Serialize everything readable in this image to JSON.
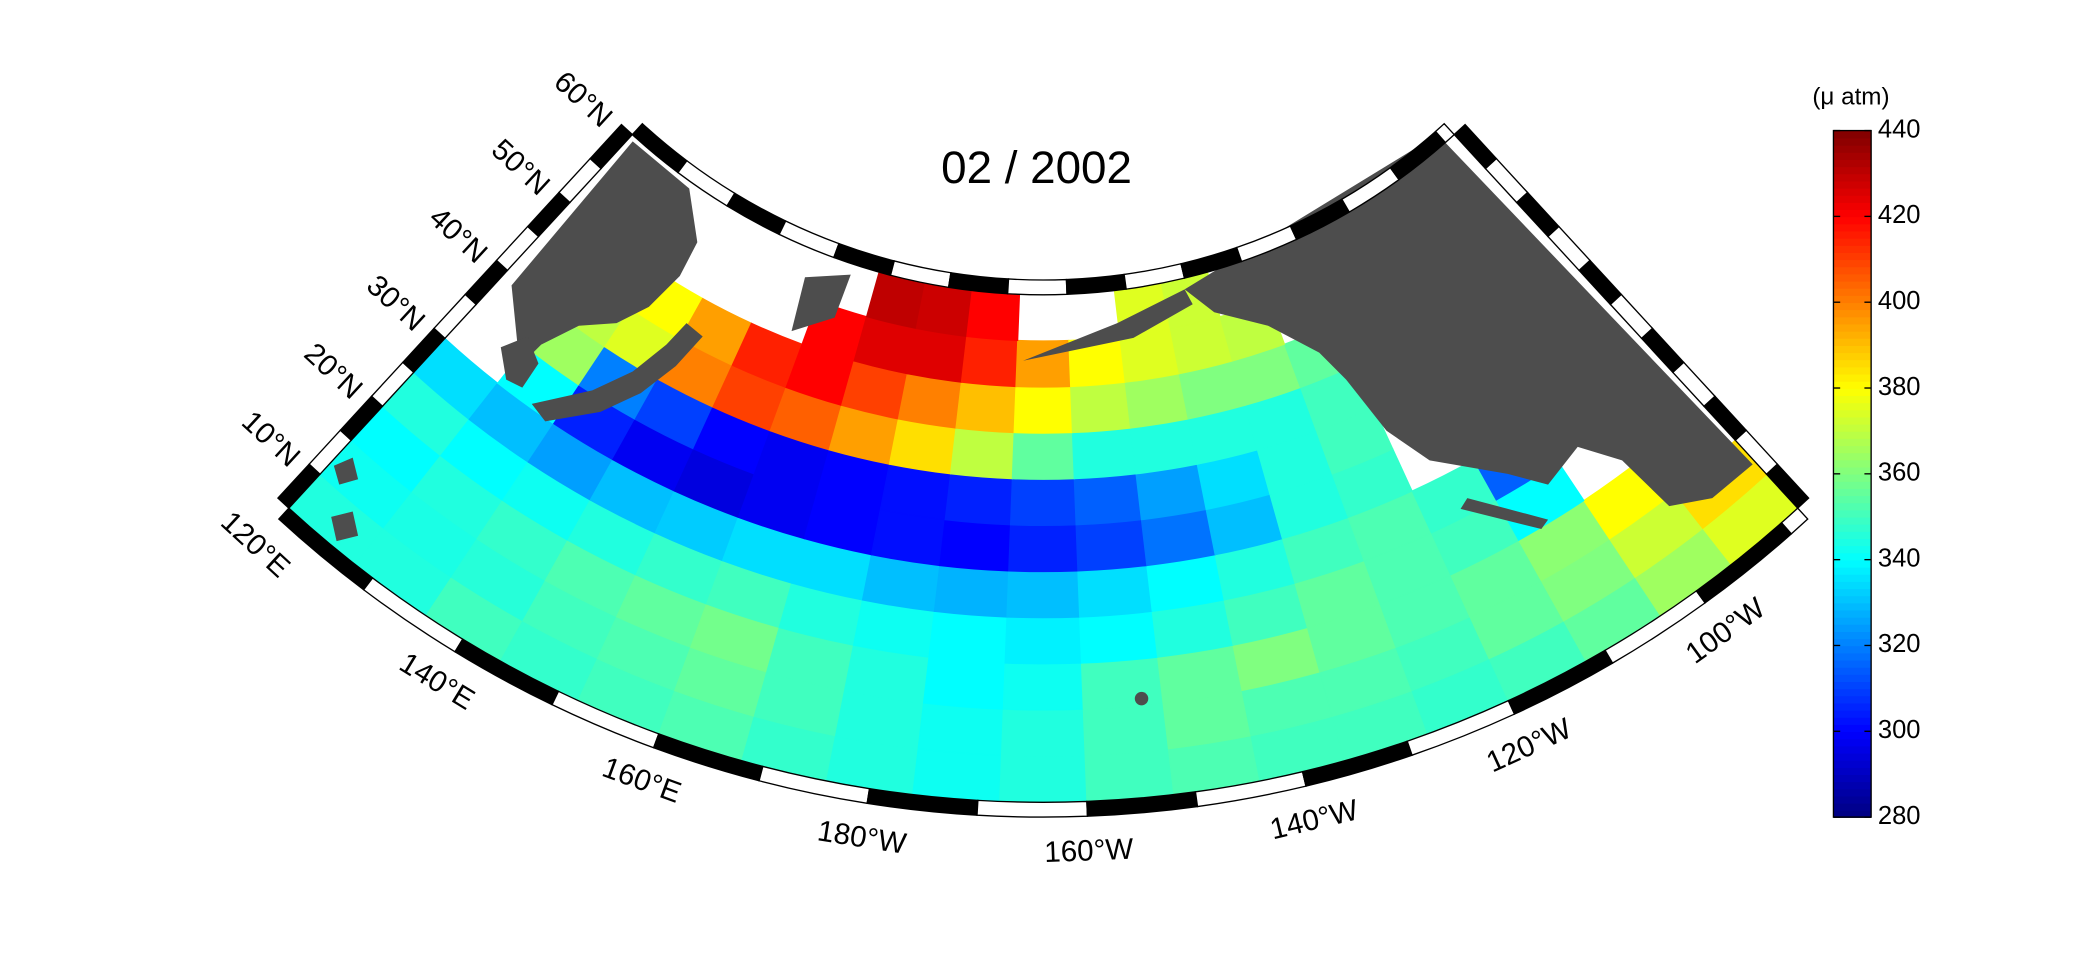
{
  "chart_data": {
    "type": "map",
    "title": "02 / 2002",
    "colorbar_label": "(μ atm)",
    "colormap": "jet",
    "clim": [
      280,
      440
    ],
    "colorbar_ticks": [
      280,
      300,
      320,
      340,
      360,
      380,
      400,
      420,
      440
    ],
    "land_color": "#4d4d4d",
    "latlim": [
      6,
      61
    ],
    "lonlim": [
      120,
      272
    ],
    "latticks": [
      {
        "value": 10,
        "label": "10°N"
      },
      {
        "value": 20,
        "label": "20°N"
      },
      {
        "value": 30,
        "label": "30°N"
      },
      {
        "value": 40,
        "label": "40°N"
      },
      {
        "value": 50,
        "label": "50°N"
      },
      {
        "value": 60,
        "label": "60°N"
      }
    ],
    "lonticks": [
      {
        "value": 120,
        "label": "120°E"
      },
      {
        "value": 140,
        "label": "140°E"
      },
      {
        "value": 160,
        "label": "160°E"
      },
      {
        "value": 180,
        "label": "180°W"
      },
      {
        "value": 200,
        "label": "160°W"
      },
      {
        "value": 220,
        "label": "140°W"
      },
      {
        "value": 240,
        "label": "120°W"
      },
      {
        "value": 260,
        "label": "100°W"
      }
    ],
    "grid": {
      "lat_edges": [
        6,
        11,
        16,
        21,
        26,
        31,
        36,
        41,
        46,
        51,
        56,
        61
      ],
      "lon_edges": [
        120,
        128,
        136,
        144,
        152,
        160,
        168,
        176,
        184,
        192,
        200,
        208,
        216,
        224,
        232,
        240,
        248,
        256,
        264,
        272
      ],
      "values": [
        [
          345,
          345,
          350,
          348,
          350,
          352,
          348,
          345,
          342,
          345,
          350,
          352,
          350,
          350,
          348,
          350,
          355,
          365,
          375
        ],
        [
          342,
          344,
          346,
          350,
          352,
          355,
          350,
          345,
          342,
          345,
          350,
          355,
          352,
          352,
          350,
          355,
          360,
          372,
          385
        ],
        [
          340,
          345,
          348,
          352,
          355,
          358,
          350,
          345,
          340,
          342,
          350,
          355,
          360,
          355,
          352,
          355,
          362,
          380,
          null
        ],
        [
          345,
          340,
          342,
          345,
          348,
          350,
          345,
          342,
          340,
          338,
          340,
          345,
          350,
          355,
          352,
          350,
          340,
          null,
          null
        ],
        [
          335,
          330,
          325,
          330,
          332,
          335,
          335,
          330,
          328,
          330,
          335,
          340,
          345,
          350,
          352,
          348,
          315,
          null,
          null
        ],
        [
          null,
          340,
          305,
          298,
          295,
          298,
          300,
          302,
          300,
          305,
          310,
          318,
          330,
          345,
          348,
          null,
          null,
          null,
          null
        ],
        [
          null,
          365,
          320,
          310,
          300,
          298,
          300,
          302,
          305,
          310,
          315,
          325,
          335,
          345,
          350,
          null,
          null,
          null,
          null
        ],
        [
          null,
          370,
          375,
          400,
          410,
          405,
          395,
          385,
          370,
          355,
          345,
          345,
          345,
          345,
          350,
          null,
          null,
          null,
          null
        ],
        [
          null,
          null,
          380,
          395,
          415,
          420,
          410,
          400,
          390,
          380,
          370,
          365,
          360,
          360,
          355,
          null,
          null,
          null,
          null
        ],
        [
          null,
          null,
          null,
          null,
          null,
          420,
          425,
          425,
          415,
          395,
          380,
          375,
          372,
          370,
          null,
          null,
          null,
          null,
          null
        ],
        [
          null,
          null,
          null,
          null,
          null,
          null,
          430,
          428,
          420,
          null,
          null,
          375,
          372,
          null,
          null,
          null,
          null,
          null,
          null
        ]
      ]
    }
  }
}
